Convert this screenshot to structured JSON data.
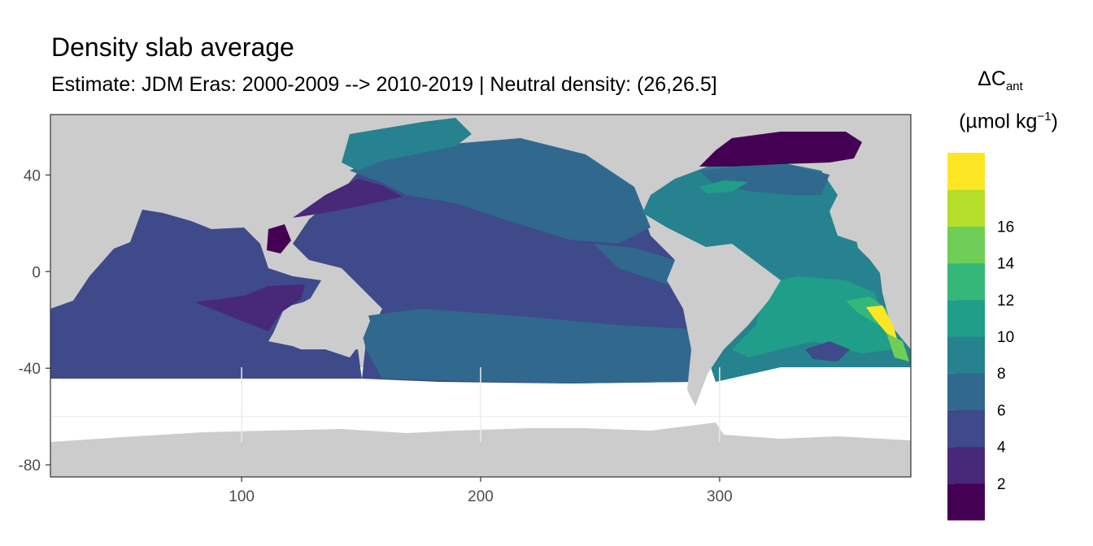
{
  "title": "Density slab average",
  "subtitle": "Estimate: JDM Eras: 2000-2009 --> 2010-2019 | Neutral density: (26,26.5]",
  "legend": {
    "title_symbol": "ΔC",
    "title_sub": "ant",
    "unit_base": "(µmol kg",
    "unit_sup": "−1",
    "unit_close": ")",
    "bins": [
      {
        "label": "2",
        "color": "#440154"
      },
      {
        "label": "4",
        "color": "#482878"
      },
      {
        "label": "6",
        "color": "#3e4a89"
      },
      {
        "label": "8",
        "color": "#31688e"
      },
      {
        "label": "10",
        "color": "#26828e"
      },
      {
        "label": "12",
        "color": "#1f9e89"
      },
      {
        "label": "14",
        "color": "#35b779"
      },
      {
        "label": "16",
        "color": "#6ece58"
      },
      {
        "label": "",
        "color": "#b5de2b"
      },
      {
        "label": "",
        "color": "#fde725"
      }
    ]
  },
  "axes": {
    "x_ticks": [
      "100",
      "200",
      "300"
    ],
    "y_ticks": [
      "40",
      "0",
      "-40",
      "-80"
    ],
    "x_range": [
      20,
      380
    ],
    "y_range": [
      -85,
      65
    ]
  },
  "colors": {
    "land": "#cccccc",
    "no_data": "#ffffff",
    "grid": "#ebebeb",
    "frame": "#333333"
  }
}
